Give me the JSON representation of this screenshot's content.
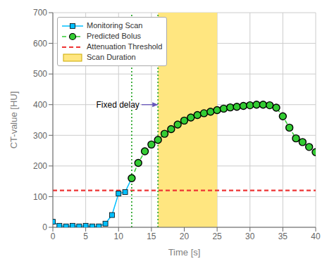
{
  "chart_data": {
    "type": "line",
    "xlabel": "Time [s]",
    "ylabel": "CT-value [HU]",
    "xlim": [
      0,
      40
    ],
    "ylim": [
      0,
      700
    ],
    "xticks": [
      0,
      5,
      10,
      15,
      20,
      25,
      30,
      35,
      40
    ],
    "yticks": [
      0,
      100,
      200,
      300,
      400,
      500,
      600,
      700
    ],
    "grid": true,
    "legend": "upper left",
    "series": [
      {
        "name": "Monitoring Scan",
        "color": "#00BFFF",
        "marker": "square",
        "line_style": "solid",
        "x": [
          0,
          1,
          2,
          3,
          4,
          5,
          6,
          7,
          8,
          9,
          10,
          11,
          12
        ],
        "values": [
          18,
          5,
          3,
          5,
          3,
          5,
          3,
          3,
          12,
          40,
          110,
          115,
          160
        ]
      },
      {
        "name": "Predicted Bolus",
        "color": "#33CC33",
        "marker": "circle",
        "line_style": "dashed",
        "x": [
          12,
          13,
          14,
          15,
          16,
          17,
          18,
          19,
          20,
          21,
          22,
          23,
          24,
          25,
          26,
          27,
          28,
          29,
          30,
          31,
          32,
          33,
          34,
          35,
          36,
          37,
          38,
          39,
          40
        ],
        "values": [
          160,
          210,
          248,
          270,
          285,
          305,
          320,
          335,
          348,
          358,
          366,
          372,
          377,
          382,
          387,
          391,
          393,
          396,
          398,
          400,
          400,
          398,
          390,
          362,
          325,
          290,
          278,
          262,
          245
        ]
      }
    ],
    "threshold": {
      "name": "Attenuation Threshold",
      "value": 120,
      "color": "#EE3333",
      "line_style": "dashed"
    },
    "vertical_lines": [
      {
        "x": 12,
        "color": "#33AA33",
        "line_style": "dotted"
      },
      {
        "x": 16,
        "color": "#33AA33",
        "line_style": "dotted"
      }
    ],
    "shaded_region": {
      "name": "Scan Duration",
      "start": 16,
      "end": 25,
      "color": "#FFE680"
    },
    "annotations": [
      {
        "text": "Fixed delay",
        "arrow_from_x": 13.5,
        "x": 16,
        "y": 400,
        "color": "#6655BB"
      }
    ]
  }
}
